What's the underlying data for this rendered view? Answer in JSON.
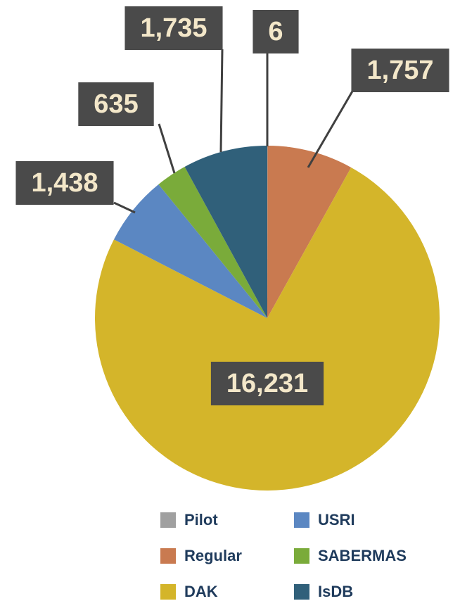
{
  "chart_data": {
    "type": "pie",
    "categories": [
      "Pilot",
      "Regular",
      "DAK",
      "USRI",
      "SABERMAS",
      "IsDB"
    ],
    "values": [
      6,
      1757,
      16231,
      1438,
      635,
      1735
    ],
    "value_labels": [
      "6",
      "1,757",
      "16,231",
      "1,438",
      "635",
      "1,735"
    ],
    "colors": [
      "#a0a0a0",
      "#c97a50",
      "#d4b52a",
      "#5b87c2",
      "#7aab3a",
      "#30607a"
    ]
  }
}
